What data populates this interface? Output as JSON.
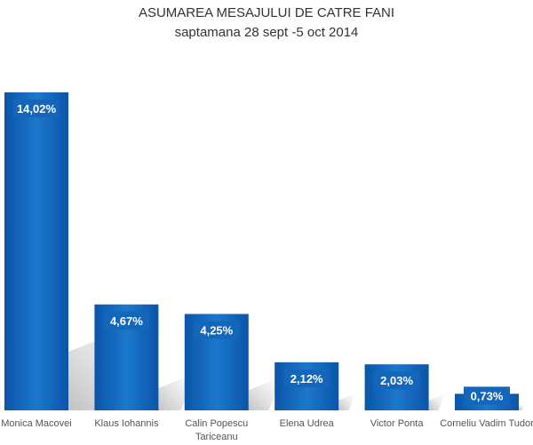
{
  "chart_data": {
    "type": "bar",
    "title": "ASUMAREA MESAJULUI DE CATRE FANI",
    "subtitle": "saptamana 28 sept -5 oct 2014",
    "categories": [
      "Monica Macovei",
      "Klaus Iohannis",
      "Calin Popescu Tariceanu",
      "Elena Udrea",
      "Victor Ponta",
      "Corneliu Vadim Tudor"
    ],
    "category_lines": [
      [
        "Monica Macovei"
      ],
      [
        "Klaus Iohannis"
      ],
      [
        "Calin Popescu",
        "Tariceanu"
      ],
      [
        "Elena Udrea"
      ],
      [
        "Victor Ponta"
      ],
      [
        "Corneliu Vadim Tudor"
      ]
    ],
    "values": [
      14.02,
      4.67,
      4.25,
      2.12,
      2.03,
      0.73
    ],
    "data_labels": [
      "14,02%",
      "4,67%",
      "4,25%",
      "2,12%",
      "2,03%",
      "0,73%"
    ],
    "xlabel": "",
    "ylabel": "",
    "ylim": [
      0,
      14.02
    ],
    "grid": false,
    "colors": {
      "bar_top": "#1a75c9",
      "bar_bottom": "#0a4fa0",
      "label_box": "#1466bb"
    }
  }
}
